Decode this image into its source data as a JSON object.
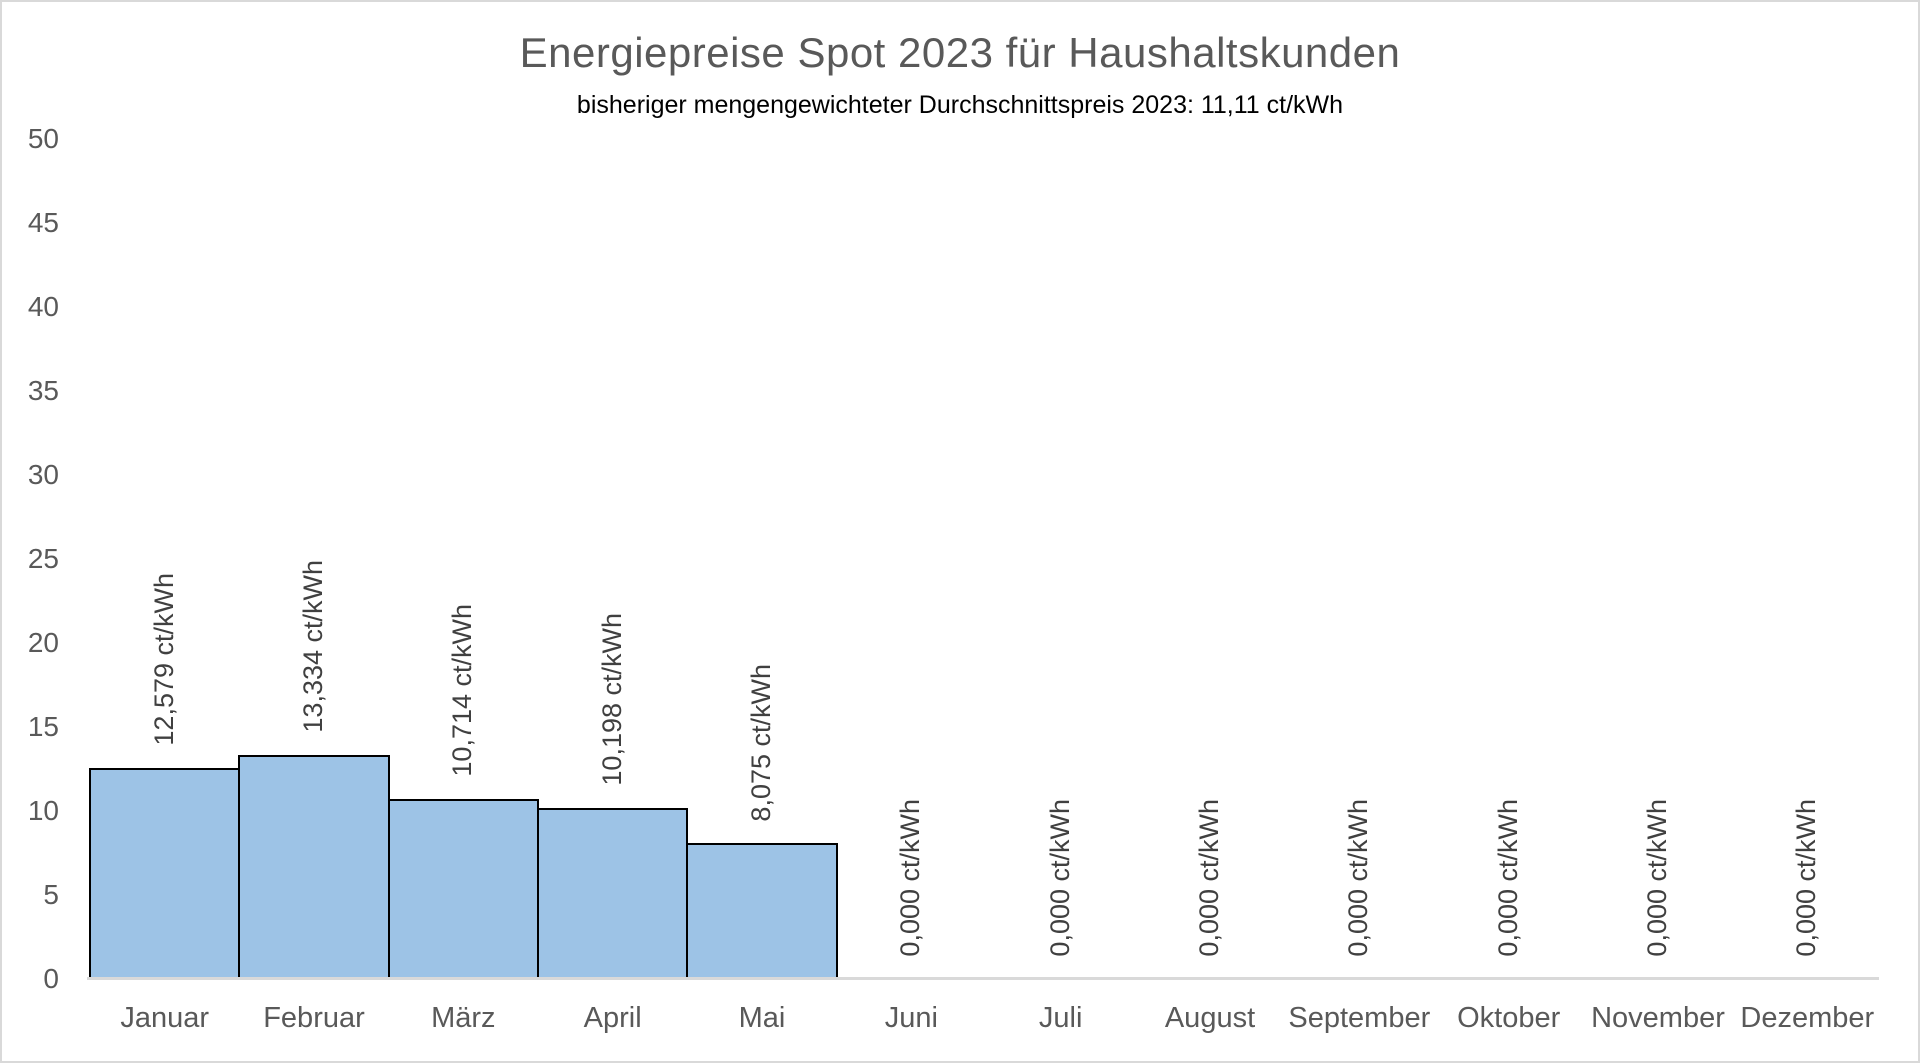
{
  "chart_data": {
    "type": "bar",
    "title": "Energiepreise Spot 2023 für Haushaltskunden",
    "subtitle": "bisheriger mengengewichteter Durchschnittspreis 2023: 11,11 ct/kWh",
    "categories": [
      "Januar",
      "Februar",
      "März",
      "April",
      "Mai",
      "Juni",
      "Juli",
      "August",
      "September",
      "Oktober",
      "November",
      "Dezember"
    ],
    "values": [
      12.579,
      13.334,
      10.714,
      10.198,
      8.075,
      0,
      0,
      0,
      0,
      0,
      0,
      0
    ],
    "data_labels": [
      "12,579 ct/kWh",
      "13,334 ct/kWh",
      "10,714 ct/kWh",
      "10,198 ct/kWh",
      "8,075 ct/kWh",
      "0,000 ct/kWh",
      "0,000 ct/kWh",
      "0,000 ct/kWh",
      "0,000 ct/kWh",
      "0,000 ct/kWh",
      "0,000 ct/kWh",
      "0,000 ct/kWh"
    ],
    "unit": "ct/kWh",
    "xlabel": "",
    "ylabel": "",
    "ylim": [
      0,
      50
    ],
    "ytick_step": 5,
    "ytick_labels": [
      "0",
      "5",
      "10",
      "15",
      "20",
      "25",
      "30",
      "35",
      "40",
      "45",
      "50"
    ],
    "grid": false,
    "legend": false,
    "colors": {
      "bar_fill": "#9DC3E6",
      "bar_border": "#000000",
      "axis_line": "#D9D9D9",
      "title_text": "#595959",
      "subtitle_text": "#000000",
      "tick_text": "#595959",
      "data_label_text": "#404040",
      "frame_border": "#D9D9D9",
      "background": "#FFFFFF"
    }
  }
}
